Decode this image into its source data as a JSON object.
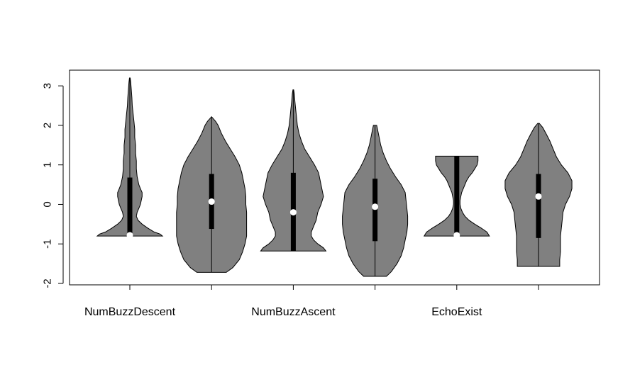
{
  "chart_data": {
    "type": "violin",
    "ylim": [
      -2.0,
      3.2
    ],
    "yticks": [
      -2,
      -1,
      0,
      1,
      2,
      3
    ],
    "ytick_labels": [
      "-2",
      "-1",
      "0",
      "1",
      "2",
      "3"
    ],
    "category_labels": [
      {
        "text": "NumBuzzDescent",
        "position": 1
      },
      {
        "text": "NumBuzzAscent",
        "position": 3
      },
      {
        "text": "EchoExist",
        "position": 5
      }
    ],
    "fill_color": "#808080",
    "box_color": "#000000",
    "median_color": "#ffffff",
    "violins": [
      {
        "position": 1,
        "min": -0.8,
        "max": 3.2,
        "q1": -0.78,
        "q3": 0.68,
        "median": -0.78,
        "profile": [
          [
            -0.8,
            0.4
          ],
          [
            -0.75,
            0.37
          ],
          [
            -0.7,
            0.3
          ],
          [
            -0.6,
            0.22
          ],
          [
            -0.5,
            0.15
          ],
          [
            -0.4,
            0.1
          ],
          [
            -0.3,
            0.08
          ],
          [
            -0.2,
            0.09
          ],
          [
            -0.1,
            0.11
          ],
          [
            0.0,
            0.13
          ],
          [
            0.1,
            0.14
          ],
          [
            0.2,
            0.15
          ],
          [
            0.3,
            0.15
          ],
          [
            0.4,
            0.13
          ],
          [
            0.5,
            0.11
          ],
          [
            0.7,
            0.09
          ],
          [
            0.9,
            0.08
          ],
          [
            1.1,
            0.08
          ],
          [
            1.3,
            0.07
          ],
          [
            1.5,
            0.07
          ],
          [
            1.7,
            0.06
          ],
          [
            1.9,
            0.06
          ],
          [
            2.1,
            0.05
          ],
          [
            2.3,
            0.04
          ],
          [
            2.5,
            0.03
          ],
          [
            2.7,
            0.025
          ],
          [
            2.9,
            0.018
          ],
          [
            3.1,
            0.01
          ],
          [
            3.2,
            0.004
          ]
        ]
      },
      {
        "position": 2,
        "min": -1.72,
        "max": 2.22,
        "q1": -0.62,
        "q3": 0.77,
        "median": 0.07,
        "profile": [
          [
            -1.72,
            0.18
          ],
          [
            -1.6,
            0.26
          ],
          [
            -1.4,
            0.34
          ],
          [
            -1.2,
            0.38
          ],
          [
            -1.0,
            0.41
          ],
          [
            -0.8,
            0.43
          ],
          [
            -0.6,
            0.43
          ],
          [
            -0.4,
            0.43
          ],
          [
            -0.2,
            0.43
          ],
          [
            0.0,
            0.42
          ],
          [
            0.2,
            0.42
          ],
          [
            0.4,
            0.41
          ],
          [
            0.6,
            0.39
          ],
          [
            0.8,
            0.37
          ],
          [
            1.0,
            0.34
          ],
          [
            1.2,
            0.29
          ],
          [
            1.4,
            0.23
          ],
          [
            1.6,
            0.17
          ],
          [
            1.8,
            0.12
          ],
          [
            2.0,
            0.08
          ],
          [
            2.1,
            0.05
          ],
          [
            2.22,
            0.0
          ]
        ]
      },
      {
        "position": 3,
        "min": -1.18,
        "max": 2.9,
        "q1": -1.18,
        "q3": 0.8,
        "median": -0.2,
        "profile": [
          [
            -1.18,
            0.4
          ],
          [
            -1.1,
            0.37
          ],
          [
            -1.0,
            0.3
          ],
          [
            -0.9,
            0.25
          ],
          [
            -0.8,
            0.22
          ],
          [
            -0.7,
            0.22
          ],
          [
            -0.6,
            0.24
          ],
          [
            -0.5,
            0.26
          ],
          [
            -0.4,
            0.28
          ],
          [
            -0.2,
            0.3
          ],
          [
            0.0,
            0.34
          ],
          [
            0.2,
            0.37
          ],
          [
            0.4,
            0.35
          ],
          [
            0.6,
            0.33
          ],
          [
            0.8,
            0.31
          ],
          [
            1.0,
            0.26
          ],
          [
            1.2,
            0.2
          ],
          [
            1.4,
            0.14
          ],
          [
            1.6,
            0.1
          ],
          [
            1.8,
            0.07
          ],
          [
            2.0,
            0.05
          ],
          [
            2.2,
            0.04
          ],
          [
            2.4,
            0.03
          ],
          [
            2.6,
            0.02
          ],
          [
            2.8,
            0.012
          ],
          [
            2.9,
            0.004
          ]
        ]
      },
      {
        "position": 4,
        "min": -1.82,
        "max": 2.0,
        "q1": -0.93,
        "q3": 0.65,
        "median": -0.06,
        "profile": [
          [
            -1.82,
            0.14
          ],
          [
            -1.7,
            0.2
          ],
          [
            -1.5,
            0.27
          ],
          [
            -1.3,
            0.32
          ],
          [
            -1.1,
            0.35
          ],
          [
            -0.9,
            0.37
          ],
          [
            -0.7,
            0.39
          ],
          [
            -0.5,
            0.4
          ],
          [
            -0.3,
            0.4
          ],
          [
            -0.1,
            0.39
          ],
          [
            0.1,
            0.38
          ],
          [
            0.3,
            0.37
          ],
          [
            0.5,
            0.32
          ],
          [
            0.7,
            0.25
          ],
          [
            0.9,
            0.19
          ],
          [
            1.1,
            0.14
          ],
          [
            1.3,
            0.1
          ],
          [
            1.5,
            0.07
          ],
          [
            1.7,
            0.05
          ],
          [
            1.9,
            0.03
          ],
          [
            2.0,
            0.02
          ]
        ]
      },
      {
        "position": 5,
        "min": -0.8,
        "max": 1.22,
        "q1": -0.78,
        "q3": 1.22,
        "median": -0.78,
        "profile": [
          [
            -0.8,
            0.4
          ],
          [
            -0.7,
            0.37
          ],
          [
            -0.6,
            0.3
          ],
          [
            -0.5,
            0.22
          ],
          [
            -0.4,
            0.15
          ],
          [
            -0.3,
            0.1
          ],
          [
            -0.2,
            0.07
          ],
          [
            -0.1,
            0.05
          ],
          [
            0.0,
            0.04
          ],
          [
            0.1,
            0.04
          ],
          [
            0.2,
            0.05
          ],
          [
            0.3,
            0.06
          ],
          [
            0.4,
            0.08
          ],
          [
            0.5,
            0.1
          ],
          [
            0.6,
            0.12
          ],
          [
            0.7,
            0.15
          ],
          [
            0.8,
            0.19
          ],
          [
            0.9,
            0.22
          ],
          [
            1.0,
            0.25
          ],
          [
            1.1,
            0.26
          ],
          [
            1.22,
            0.26
          ]
        ]
      },
      {
        "position": 6,
        "min": -1.57,
        "max": 2.05,
        "q1": -0.85,
        "q3": 0.77,
        "median": 0.2,
        "profile": [
          [
            -1.57,
            0.26
          ],
          [
            -1.4,
            0.26
          ],
          [
            -1.2,
            0.27
          ],
          [
            -1.0,
            0.27
          ],
          [
            -0.8,
            0.27
          ],
          [
            -0.6,
            0.28
          ],
          [
            -0.4,
            0.29
          ],
          [
            -0.2,
            0.3
          ],
          [
            0.0,
            0.33
          ],
          [
            0.2,
            0.38
          ],
          [
            0.4,
            0.41
          ],
          [
            0.6,
            0.41
          ],
          [
            0.8,
            0.36
          ],
          [
            1.0,
            0.28
          ],
          [
            1.2,
            0.22
          ],
          [
            1.4,
            0.18
          ],
          [
            1.6,
            0.14
          ],
          [
            1.8,
            0.09
          ],
          [
            1.95,
            0.05
          ],
          [
            2.05,
            0.01
          ]
        ]
      }
    ]
  }
}
